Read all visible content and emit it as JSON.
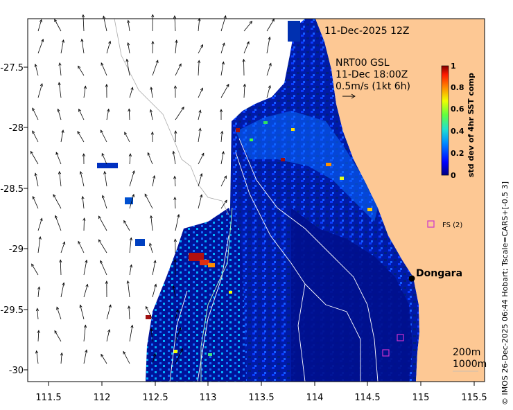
{
  "header": {
    "datetime": "11-Dec-2025 12Z"
  },
  "current_legend": {
    "source": "NRT00 GSL",
    "time": "11-Dec 18:00Z",
    "scale": "0.5m/s (1kt 6h)"
  },
  "colorbar": {
    "label": "std dev of 4hr SST comp",
    "ticks": [
      "0",
      "0.2",
      "0.4",
      "0.6",
      "0.8",
      "1"
    ]
  },
  "axes": {
    "x_ticks": [
      "111.5",
      "112",
      "112.5",
      "113",
      "113.5",
      "114",
      "114.5",
      "115",
      "115.5"
    ],
    "y_ticks": [
      "-27.5",
      "-28",
      "-28.5",
      "-29",
      "-29.5",
      "-30"
    ]
  },
  "places": {
    "town": "Dongara",
    "station": "FS (2)"
  },
  "isobath_legend": {
    "line1": "200m",
    "line2": "1000m"
  },
  "credit": "© IMOS 26-Dec-2025 06:44 Hobart; Tscale=CARS+[-0.5 3]",
  "colors": {
    "land": "#fdc894",
    "deep_water": "#00008b",
    "station_marker": "#cc33cc",
    "town_marker": "#000000"
  }
}
